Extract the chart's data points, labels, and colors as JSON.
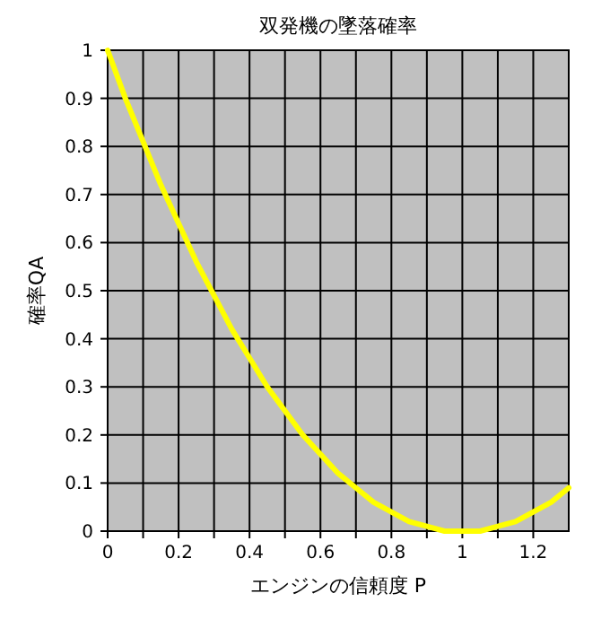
{
  "chart_data": {
    "type": "line",
    "title": "双発機の墜落確率",
    "xlabel": "エンジンの信頼度 P",
    "ylabel": "確率QA",
    "x": [
      0,
      0.05,
      0.1,
      0.15,
      0.2,
      0.25,
      0.3,
      0.35,
      0.4,
      0.45,
      0.5,
      0.55,
      0.6,
      0.65,
      0.7,
      0.75,
      0.8,
      0.85,
      0.9,
      0.95,
      1,
      1.05,
      1.1,
      1.15,
      1.2,
      1.25,
      1.3
    ],
    "series": [
      {
        "color": "#ffff00",
        "values": [
          1,
          0.9,
          0.81,
          0.72,
          0.64,
          0.56,
          0.49,
          0.42,
          0.36,
          0.3,
          0.25,
          0.2,
          0.16,
          0.12,
          0.09,
          0.06,
          0.04,
          0.02,
          0.01,
          0,
          0,
          0,
          0.01,
          0.02,
          0.04,
          0.06,
          0.09
        ]
      }
    ],
    "xlim": [
      0,
      1.3
    ],
    "xticks": [
      0,
      {
        "value": 0.1,
        "label": null
      },
      0.2,
      {
        "value": 0.3,
        "label": null
      },
      0.4,
      {
        "value": 0.5,
        "label": null
      },
      0.6,
      {
        "value": 0.7,
        "label": null
      },
      0.8,
      {
        "value": 0.9,
        "label": null
      },
      1,
      {
        "value": 1.1,
        "label": null
      },
      1.2
    ],
    "ylim": [
      0,
      1
    ],
    "yticks": [
      0,
      0.1,
      0.2,
      0.3,
      0.4,
      0.5,
      0.6,
      0.7,
      0.8,
      0.9,
      1
    ],
    "grid": true,
    "marker": "none",
    "line_style": "solid"
  }
}
